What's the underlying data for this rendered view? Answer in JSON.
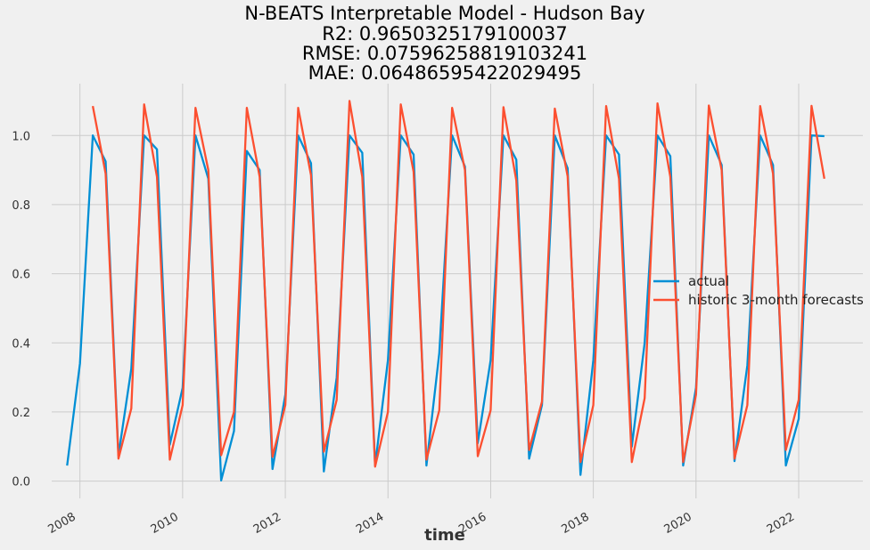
{
  "chart_data": {
    "type": "line",
    "title": [
      "N-BEATS Interpretable Model - Hudson Bay",
      "R2: 0.9650325179100037",
      "RMSE: 0.07596258819103241",
      "MAE: 0.06486595422029495"
    ],
    "xlabel": "time",
    "ylabel": "",
    "xlim": [
      2007.45,
      2023.25
    ],
    "ylim": [
      -0.05,
      1.15
    ],
    "x_ticks": [
      {
        "value": 2008,
        "label": "2008"
      },
      {
        "value": 2010,
        "label": "2010"
      },
      {
        "value": 2012,
        "label": "2012"
      },
      {
        "value": 2014,
        "label": "2014"
      },
      {
        "value": 2016,
        "label": "2016"
      },
      {
        "value": 2018,
        "label": "2018"
      },
      {
        "value": 2020,
        "label": "2020"
      },
      {
        "value": 2022,
        "label": "2022"
      }
    ],
    "y_ticks": [
      {
        "value": 0.0,
        "label": "0.0"
      },
      {
        "value": 0.2,
        "label": "0.2"
      },
      {
        "value": 0.4,
        "label": "0.4"
      },
      {
        "value": 0.6,
        "label": "0.6"
      },
      {
        "value": 0.8,
        "label": "0.8"
      },
      {
        "value": 1.0,
        "label": "1.0"
      }
    ],
    "grid": true,
    "legend_position": "center-right",
    "series": [
      {
        "name": "actual",
        "color": "#008fd5",
        "points": [
          [
            2007.75,
            0.045
          ],
          [
            2008.0,
            0.34
          ],
          [
            2008.25,
            1.0
          ],
          [
            2008.5,
            0.925
          ],
          [
            2008.75,
            0.075
          ],
          [
            2009.0,
            0.325
          ],
          [
            2009.25,
            1.0
          ],
          [
            2009.5,
            0.96
          ],
          [
            2009.75,
            0.105
          ],
          [
            2010.0,
            0.27
          ],
          [
            2010.25,
            1.0
          ],
          [
            2010.5,
            0.875
          ],
          [
            2010.75,
            0.002
          ],
          [
            2011.0,
            0.145
          ],
          [
            2011.25,
            0.955
          ],
          [
            2011.5,
            0.9
          ],
          [
            2011.75,
            0.035
          ],
          [
            2012.0,
            0.25
          ],
          [
            2012.25,
            1.0
          ],
          [
            2012.5,
            0.92
          ],
          [
            2012.75,
            0.028
          ],
          [
            2013.0,
            0.3
          ],
          [
            2013.25,
            1.0
          ],
          [
            2013.5,
            0.95
          ],
          [
            2013.75,
            0.045
          ],
          [
            2014.0,
            0.35
          ],
          [
            2014.25,
            1.0
          ],
          [
            2014.5,
            0.945
          ],
          [
            2014.75,
            0.045
          ],
          [
            2015.0,
            0.37
          ],
          [
            2015.25,
            1.0
          ],
          [
            2015.5,
            0.91
          ],
          [
            2015.75,
            0.11
          ],
          [
            2016.0,
            0.35
          ],
          [
            2016.25,
            1.0
          ],
          [
            2016.5,
            0.93
          ],
          [
            2016.75,
            0.065
          ],
          [
            2017.0,
            0.22
          ],
          [
            2017.25,
            1.0
          ],
          [
            2017.5,
            0.905
          ],
          [
            2017.75,
            0.018
          ],
          [
            2018.0,
            0.35
          ],
          [
            2018.25,
            1.0
          ],
          [
            2018.5,
            0.945
          ],
          [
            2018.75,
            0.1
          ],
          [
            2019.0,
            0.4
          ],
          [
            2019.25,
            1.0
          ],
          [
            2019.5,
            0.94
          ],
          [
            2019.75,
            0.045
          ],
          [
            2020.0,
            0.27
          ],
          [
            2020.25,
            1.0
          ],
          [
            2020.5,
            0.915
          ],
          [
            2020.75,
            0.058
          ],
          [
            2021.0,
            0.335
          ],
          [
            2021.25,
            1.0
          ],
          [
            2021.5,
            0.915
          ],
          [
            2021.75,
            0.045
          ],
          [
            2022.0,
            0.18
          ],
          [
            2022.25,
            1.0
          ],
          [
            2022.5,
            0.998
          ]
        ]
      },
      {
        "name": "historic 3-month forecasts",
        "color": "#fc4f30",
        "points": [
          [
            2008.25,
            1.085
          ],
          [
            2008.5,
            0.89
          ],
          [
            2008.75,
            0.065
          ],
          [
            2009.0,
            0.21
          ],
          [
            2009.25,
            1.09
          ],
          [
            2009.5,
            0.88
          ],
          [
            2009.75,
            0.062
          ],
          [
            2010.0,
            0.22
          ],
          [
            2010.25,
            1.08
          ],
          [
            2010.5,
            0.9
          ],
          [
            2010.75,
            0.075
          ],
          [
            2011.0,
            0.2
          ],
          [
            2011.25,
            1.08
          ],
          [
            2011.5,
            0.88
          ],
          [
            2011.75,
            0.07
          ],
          [
            2012.0,
            0.22
          ],
          [
            2012.25,
            1.08
          ],
          [
            2012.5,
            0.885
          ],
          [
            2012.75,
            0.085
          ],
          [
            2013.0,
            0.235
          ],
          [
            2013.25,
            1.1
          ],
          [
            2013.5,
            0.88
          ],
          [
            2013.75,
            0.042
          ],
          [
            2014.0,
            0.2
          ],
          [
            2014.25,
            1.09
          ],
          [
            2014.5,
            0.895
          ],
          [
            2014.75,
            0.062
          ],
          [
            2015.0,
            0.205
          ],
          [
            2015.25,
            1.08
          ],
          [
            2015.5,
            0.9
          ],
          [
            2015.75,
            0.072
          ],
          [
            2016.0,
            0.205
          ],
          [
            2016.25,
            1.082
          ],
          [
            2016.5,
            0.87
          ],
          [
            2016.75,
            0.09
          ],
          [
            2017.0,
            0.23
          ],
          [
            2017.25,
            1.078
          ],
          [
            2017.5,
            0.882
          ],
          [
            2017.75,
            0.055
          ],
          [
            2018.0,
            0.22
          ],
          [
            2018.25,
            1.085
          ],
          [
            2018.5,
            0.875
          ],
          [
            2018.75,
            0.055
          ],
          [
            2019.0,
            0.24
          ],
          [
            2019.25,
            1.093
          ],
          [
            2019.5,
            0.88
          ],
          [
            2019.75,
            0.055
          ],
          [
            2020.0,
            0.25
          ],
          [
            2020.25,
            1.087
          ],
          [
            2020.5,
            0.9
          ],
          [
            2020.75,
            0.065
          ],
          [
            2021.0,
            0.22
          ],
          [
            2021.25,
            1.085
          ],
          [
            2021.5,
            0.89
          ],
          [
            2021.75,
            0.09
          ],
          [
            2022.0,
            0.235
          ],
          [
            2022.25,
            1.086
          ],
          [
            2022.5,
            0.875
          ]
        ]
      }
    ]
  }
}
